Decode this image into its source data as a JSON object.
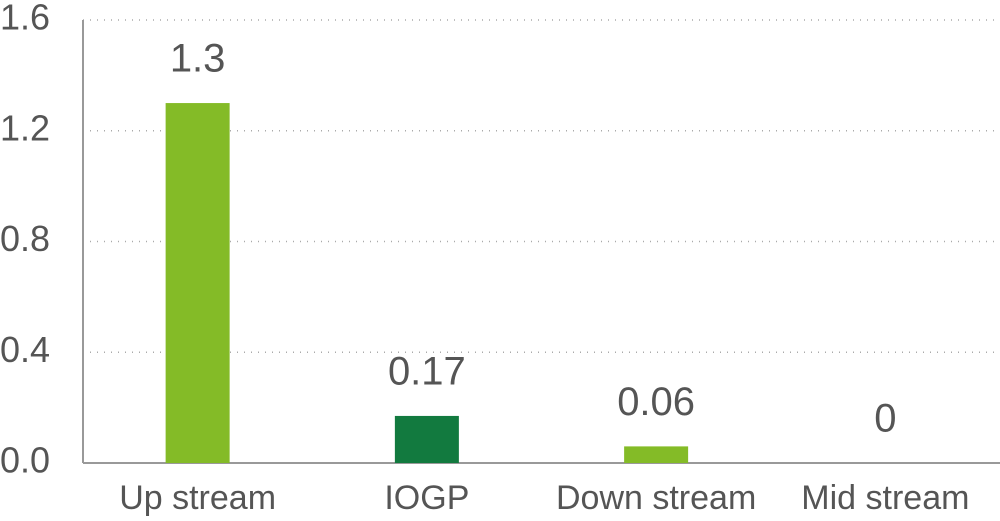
{
  "chart_data": {
    "type": "bar",
    "categories": [
      "Up stream",
      "IOGP",
      "Down stream",
      "Mid stream"
    ],
    "values": [
      1.3,
      0.17,
      0.06,
      0
    ],
    "colors": [
      "#84bb27",
      "#127a3f",
      "#84bb27",
      "#84bb27"
    ],
    "ylim": [
      0,
      1.6
    ],
    "yticks": [
      {
        "value": 0,
        "label": "0.0"
      },
      0.4,
      0.8,
      1.2,
      1.6
    ],
    "grid": true
  }
}
